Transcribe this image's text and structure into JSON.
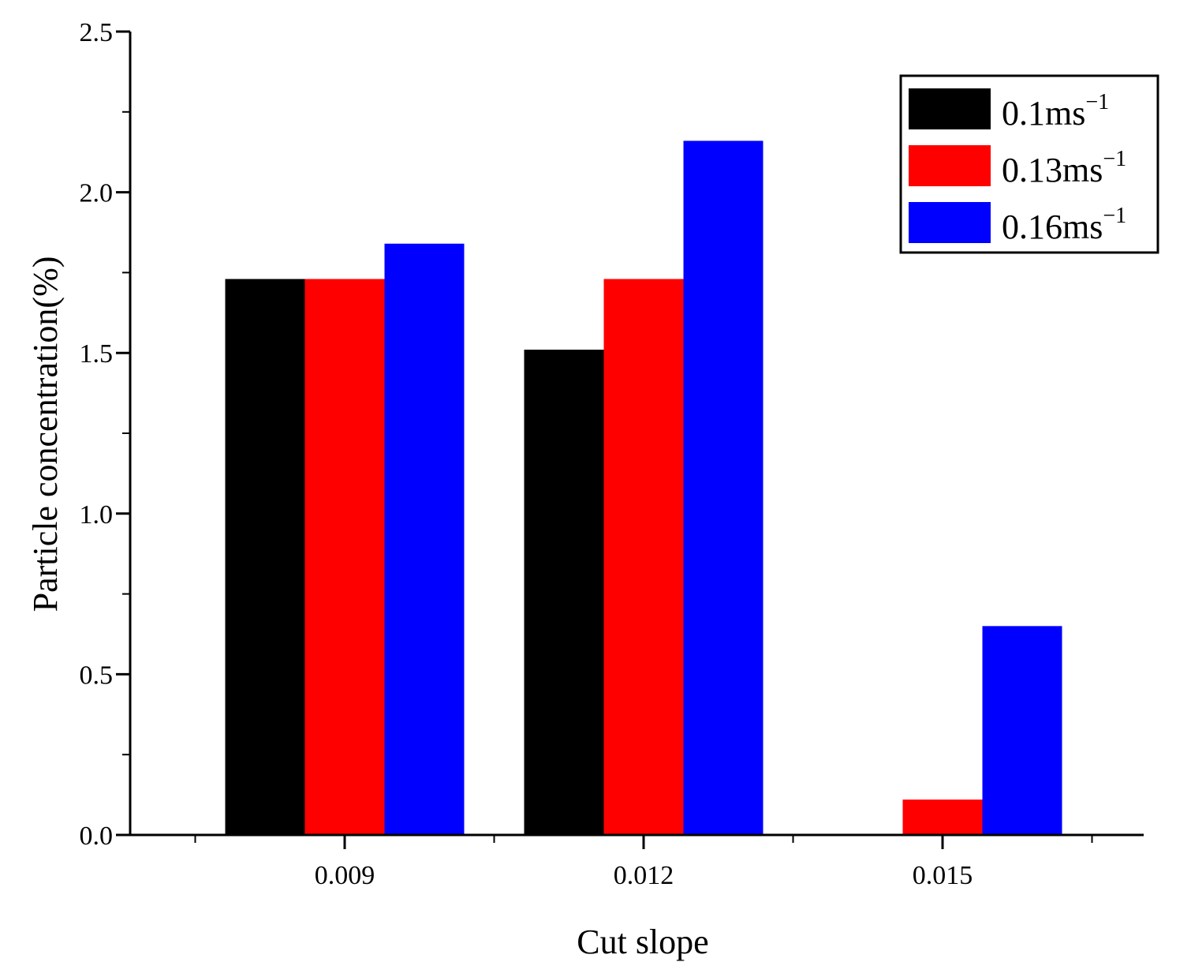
{
  "chart_data": {
    "type": "bar",
    "title": "",
    "xlabel": "Cut slope",
    "ylabel": "Particle concentration(%)",
    "categories": [
      "0.009",
      "0.012",
      "0.015"
    ],
    "ylim": [
      0,
      2.5
    ],
    "yticks": [
      "0.0",
      "0.5",
      "1.0",
      "1.5",
      "2.0",
      "2.5"
    ],
    "grid": false,
    "legend_position": "top-right",
    "series": [
      {
        "name": "0.1ms",
        "unit_sup": "−1",
        "color": "#000000",
        "values": [
          1.73,
          1.51,
          0
        ]
      },
      {
        "name": "0.13ms",
        "unit_sup": "−1",
        "color": "#ff0000",
        "values": [
          1.73,
          1.73,
          0.11
        ]
      },
      {
        "name": "0.16ms",
        "unit_sup": "−1",
        "color": "#0000ff",
        "values": [
          1.84,
          2.16,
          0.65
        ]
      }
    ]
  }
}
